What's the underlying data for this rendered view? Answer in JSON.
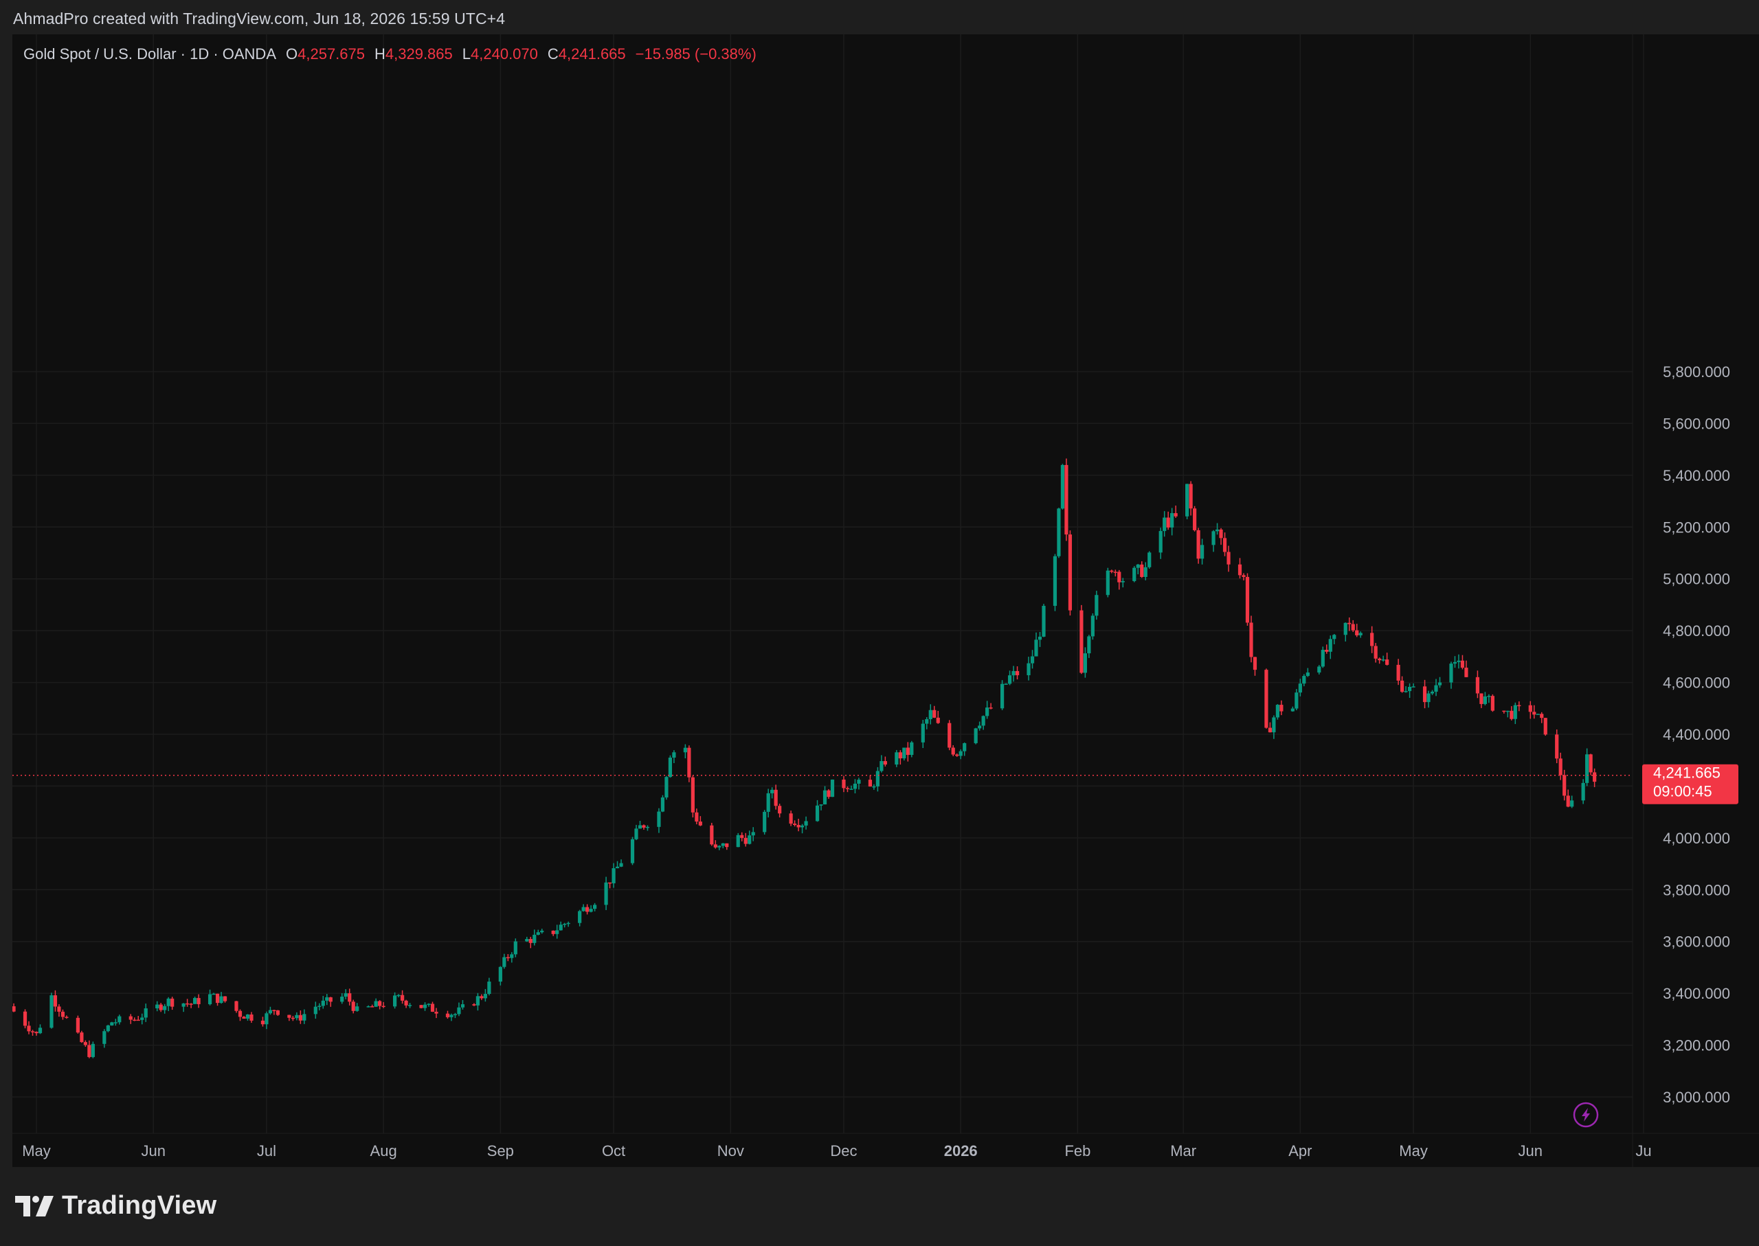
{
  "caption": "AhmadPro created with TradingView.com, Jun 18, 2026 15:59 UTC+4",
  "legend": {
    "symbol": "Gold Spot / U.S. Dollar · 1D · OANDA",
    "o_label": "O",
    "o_value": "4,257.675",
    "h_label": "H",
    "h_value": "4,329.865",
    "l_label": "L",
    "l_value": "4,240.070",
    "c_label": "C",
    "c_value": "4,241.665",
    "change": "−15.985 (−0.38%)"
  },
  "price_tag": {
    "price": "4,241.665",
    "countdown": "09:00:45"
  },
  "brand": {
    "name": "TradingView",
    "icon": "tradingview-logo-icon"
  },
  "flash_icon": "lightning-bolt-icon",
  "colors": {
    "up": "#089981",
    "down": "#f23645",
    "background": "#0f0f0f",
    "text": "#d1d4dc",
    "grid": "#1c1c1c",
    "flash": "#9c27b0"
  },
  "chart_data": {
    "type": "candlestick",
    "title": "Gold Spot / U.S. Dollar · 1D · OANDA",
    "ylim": [
      2900,
      5850
    ],
    "y_ticks": [
      "3,000.000",
      "3,200.000",
      "3,400.000",
      "3,600.000",
      "3,800.000",
      "4,000.000",
      "4,200.000",
      "4,400.000",
      "4,600.000",
      "4,800.000",
      "5,000.000",
      "5,200.000",
      "5,400.000",
      "5,600.000",
      "5,800.000"
    ],
    "y_tick_values": [
      3000,
      3200,
      3400,
      3600,
      3800,
      4000,
      4200,
      4400,
      4600,
      4800,
      5000,
      5200,
      5400,
      5600,
      5800
    ],
    "x_labels": [
      {
        "label": "May",
        "bold": false
      },
      {
        "label": "Jun",
        "bold": false
      },
      {
        "label": "Jul",
        "bold": false
      },
      {
        "label": "Aug",
        "bold": false
      },
      {
        "label": "Sep",
        "bold": false
      },
      {
        "label": "Oct",
        "bold": false
      },
      {
        "label": "Nov",
        "bold": false
      },
      {
        "label": "Dec",
        "bold": false
      },
      {
        "label": "2026",
        "bold": true
      },
      {
        "label": "Feb",
        "bold": false
      },
      {
        "label": "Mar",
        "bold": false
      },
      {
        "label": "Apr",
        "bold": false
      },
      {
        "label": "May",
        "bold": false
      },
      {
        "label": "Jun",
        "bold": false
      },
      {
        "label": "Ju",
        "bold": false
      }
    ],
    "x_label_dates": [
      "2025-05-01",
      "2025-06-01",
      "2025-07-01",
      "2025-08-01",
      "2025-09-01",
      "2025-10-01",
      "2025-11-01",
      "2025-12-01",
      "2026-01-01",
      "2026-02-01",
      "2026-03-01",
      "2026-04-01",
      "2026-05-01",
      "2026-06-01",
      "2026-07-01"
    ],
    "last_price": 4241.665,
    "series_close_path": [
      [
        "2025-04-25",
        3330
      ],
      [
        "2025-05-01",
        3240
      ],
      [
        "2025-05-05",
        3390
      ],
      [
        "2025-05-12",
        3230
      ],
      [
        "2025-05-15",
        3170
      ],
      [
        "2025-05-21",
        3290
      ],
      [
        "2025-05-27",
        3300
      ],
      [
        "2025-06-05",
        3370
      ],
      [
        "2025-06-11",
        3360
      ],
      [
        "2025-06-16",
        3390
      ],
      [
        "2025-06-20",
        3370
      ],
      [
        "2025-06-24",
        3320
      ],
      [
        "2025-06-30",
        3300
      ],
      [
        "2025-07-03",
        3340
      ],
      [
        "2025-07-09",
        3300
      ],
      [
        "2025-07-14",
        3350
      ],
      [
        "2025-07-22",
        3390
      ],
      [
        "2025-07-25",
        3330
      ],
      [
        "2025-08-01",
        3360
      ],
      [
        "2025-08-05",
        3380
      ],
      [
        "2025-08-11",
        3350
      ],
      [
        "2025-08-20",
        3320
      ],
      [
        "2025-08-27",
        3390
      ],
      [
        "2025-09-02",
        3520
      ],
      [
        "2025-09-05",
        3590
      ],
      [
        "2025-09-15",
        3640
      ],
      [
        "2025-09-19",
        3680
      ],
      [
        "2025-09-26",
        3760
      ],
      [
        "2025-10-01",
        3860
      ],
      [
        "2025-10-08",
        4040
      ],
      [
        "2025-10-13",
        4100
      ],
      [
        "2025-10-16",
        4330
      ],
      [
        "2025-10-20",
        4350
      ],
      [
        "2025-10-22",
        4100
      ],
      [
        "2025-10-28",
        3950
      ],
      [
        "2025-11-03",
        4000
      ],
      [
        "2025-11-07",
        4000
      ],
      [
        "2025-11-12",
        4190
      ],
      [
        "2025-11-14",
        4090
      ],
      [
        "2025-11-20",
        4060
      ],
      [
        "2025-11-28",
        4200
      ],
      [
        "2025-12-03",
        4210
      ],
      [
        "2025-12-08",
        4190
      ],
      [
        "2025-12-12",
        4300
      ],
      [
        "2025-12-18",
        4330
      ],
      [
        "2025-12-24",
        4480
      ],
      [
        "2025-12-29",
        4350
      ],
      [
        "2025-12-31",
        4330
      ],
      [
        "2026-01-05",
        4440
      ],
      [
        "2026-01-09",
        4500
      ],
      [
        "2026-01-14",
        4620
      ],
      [
        "2026-01-19",
        4660
      ],
      [
        "2026-01-22",
        4800
      ],
      [
        "2026-01-26",
        5070
      ],
      [
        "2026-01-28",
        5420
      ],
      [
        "2026-01-30",
        4880
      ],
      [
        "2026-02-02",
        4660
      ],
      [
        "2026-02-05",
        4880
      ],
      [
        "2026-02-10",
        5050
      ],
      [
        "2026-02-13",
        5000
      ],
      [
        "2026-02-19",
        5040
      ],
      [
        "2026-02-24",
        5220
      ],
      [
        "2026-02-27",
        5230
      ],
      [
        "2026-03-02",
        5350
      ],
      [
        "2026-03-05",
        5100
      ],
      [
        "2026-03-10",
        5190
      ],
      [
        "2026-03-13",
        5080
      ],
      [
        "2026-03-17",
        5000
      ],
      [
        "2026-03-19",
        4700
      ],
      [
        "2026-03-23",
        4400
      ],
      [
        "2026-03-26",
        4500
      ],
      [
        "2026-03-30",
        4500
      ],
      [
        "2026-04-02",
        4640
      ],
      [
        "2026-04-07",
        4700
      ],
      [
        "2026-04-13",
        4820
      ],
      [
        "2026-04-17",
        4800
      ],
      [
        "2026-04-22",
        4700
      ],
      [
        "2026-04-27",
        4600
      ],
      [
        "2026-04-30",
        4570
      ],
      [
        "2026-05-05",
        4540
      ],
      [
        "2026-05-11",
        4700
      ],
      [
        "2026-05-15",
        4620
      ],
      [
        "2026-05-19",
        4540
      ],
      [
        "2026-05-26",
        4480
      ],
      [
        "2026-06-01",
        4500
      ],
      [
        "2026-06-05",
        4420
      ],
      [
        "2026-06-09",
        4250
      ],
      [
        "2026-06-11",
        4100
      ],
      [
        "2026-06-15",
        4230
      ],
      [
        "2026-06-16",
        4320
      ],
      [
        "2026-06-17",
        4260
      ],
      [
        "2026-06-18",
        4241.665
      ]
    ]
  }
}
